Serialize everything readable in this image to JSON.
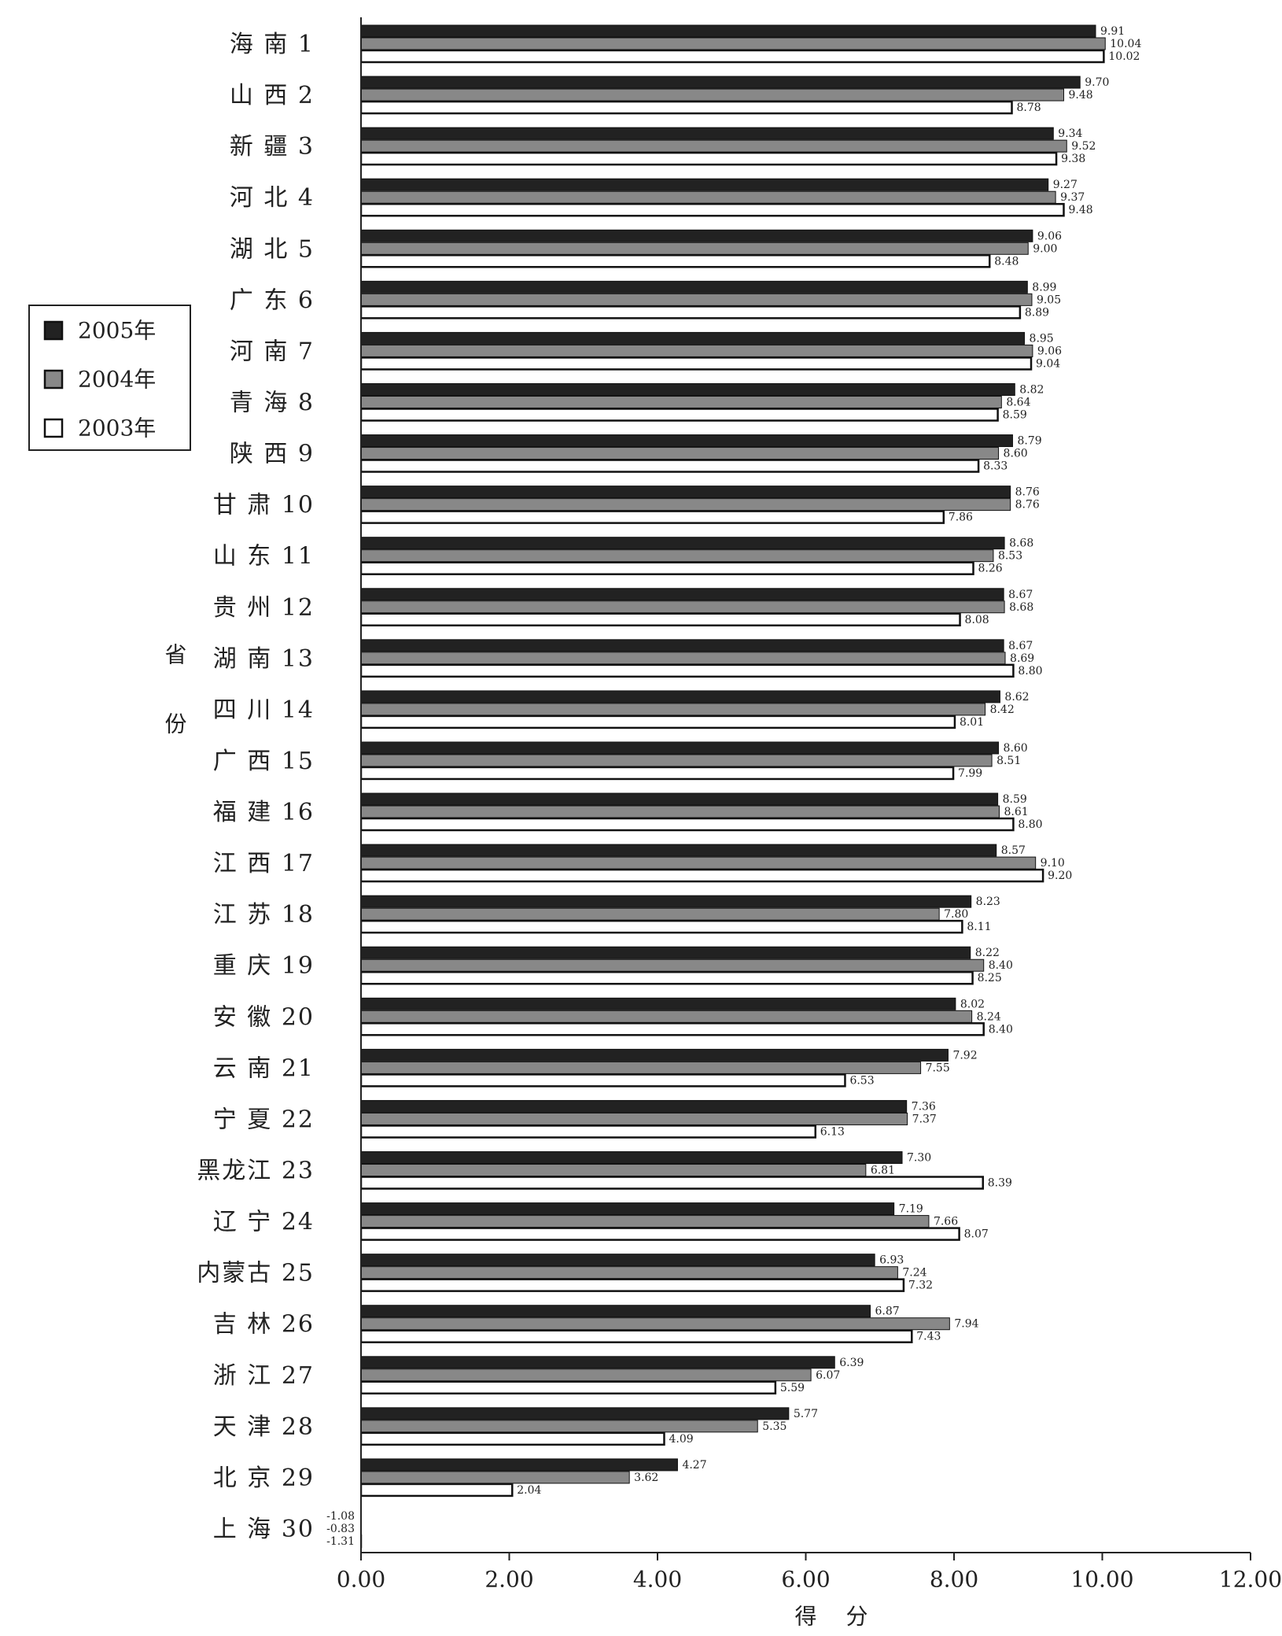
{
  "chart_data": {
    "type": "hbar",
    "x_label": "得 分",
    "y_label": "省份",
    "categories": [
      "海 南 1",
      "山 西 2",
      "新 疆 3",
      "河 北 4",
      "湖 北 5",
      "广 东 6",
      "河 南 7",
      "青 海 8",
      "陕 西 9",
      "甘 肃 10",
      "山 东 11",
      "贵 州 12",
      "湖 南 13",
      "四 川 14",
      "广 西 15",
      "福 建 16",
      "江 西 17",
      "江 苏 18",
      "重 庆 19",
      "安 徽 20",
      "云 南 21",
      "宁 夏 22",
      "黑龙江 23",
      "辽 宁 24",
      "内蒙古 25",
      "吉 林 26",
      "浙 江 27",
      "天 津 28",
      "北 京 29",
      "上 海 30"
    ],
    "series": [
      {
        "name": "2005年",
        "color": "#222222",
        "values": [
          9.91,
          9.7,
          9.34,
          9.27,
          9.06,
          8.99,
          8.95,
          8.82,
          8.79,
          8.76,
          8.68,
          8.67,
          8.67,
          8.62,
          8.6,
          8.59,
          8.57,
          8.23,
          8.22,
          8.02,
          7.92,
          7.36,
          7.3,
          7.19,
          6.93,
          6.87,
          6.39,
          5.77,
          4.27,
          -1.08
        ],
        "value_labels": [
          "9.91",
          "9.70",
          "9.34",
          "9.27",
          "9.06",
          "8.99",
          "8.95",
          "8.82",
          "8.79",
          "8.76",
          "8.68",
          "8.67",
          "8.67",
          "8.62",
          "8.60",
          "8.59",
          "8.57",
          "8.23",
          "8.22",
          "8.02",
          "7.92",
          "7.36",
          "7.30",
          "7.19",
          "6.93",
          "6.87",
          "6.39",
          "5.77",
          "4.27",
          "-1.08"
        ]
      },
      {
        "name": "2004年",
        "color": "#888888",
        "values": [
          10.04,
          9.48,
          9.52,
          9.37,
          9.0,
          9.05,
          9.06,
          8.64,
          8.6,
          8.76,
          8.53,
          8.68,
          8.69,
          8.42,
          8.51,
          8.61,
          9.1,
          7.8,
          8.4,
          8.24,
          7.55,
          7.37,
          6.81,
          7.66,
          7.24,
          7.94,
          6.07,
          5.35,
          3.62,
          -0.83
        ],
        "value_labels": [
          "10.04",
          "9.48",
          "9.52",
          "9.37",
          "9.00",
          "9.05",
          "9.06",
          "8.64",
          "8.60",
          "8.76",
          "8.53",
          "8.68",
          "8.69",
          "8.42",
          "8.51",
          "8.61",
          "9.10",
          "7.80",
          "8.40",
          "8.24",
          "7.55",
          "7.37",
          "6.81",
          "7.66",
          "7.24",
          "7.94",
          "6.07",
          "5.35",
          "3.62",
          "-0.83"
        ]
      },
      {
        "name": "2003年",
        "color": "#ffffff",
        "values": [
          10.02,
          8.78,
          9.38,
          9.48,
          8.48,
          8.89,
          9.04,
          8.59,
          8.33,
          7.86,
          8.26,
          8.08,
          8.8,
          8.01,
          7.99,
          8.8,
          9.2,
          8.11,
          8.25,
          8.4,
          6.53,
          6.13,
          8.39,
          8.07,
          7.32,
          7.43,
          5.59,
          4.09,
          2.04,
          -1.31
        ],
        "value_labels": [
          "10.02",
          "8.78",
          "9.38",
          "9.48",
          "8.48",
          "8.89",
          "9.04",
          "8.59",
          "8.33",
          "7.86",
          "8.26",
          "8.08",
          "8.80",
          "8.01",
          "7.99",
          "8.80",
          "9.20",
          "8.11",
          "8.25",
          "8.40",
          "6.53",
          "6.13",
          "8.39",
          "8.07",
          "7.32",
          "7.43",
          "5.59",
          "4.09",
          "2.04",
          "-1.31"
        ]
      }
    ],
    "xlim": [
      0,
      12
    ],
    "xticks": [
      {
        "value": 0,
        "label": "0.00"
      },
      {
        "value": 2,
        "label": "2.00"
      },
      {
        "value": 4,
        "label": "4.00"
      },
      {
        "value": 6,
        "label": "6.00"
      },
      {
        "value": 8,
        "label": "8.00"
      },
      {
        "value": 10,
        "label": "10.00"
      },
      {
        "value": 12,
        "label": "12.00"
      }
    ],
    "legend": "left",
    "grid": false
  }
}
